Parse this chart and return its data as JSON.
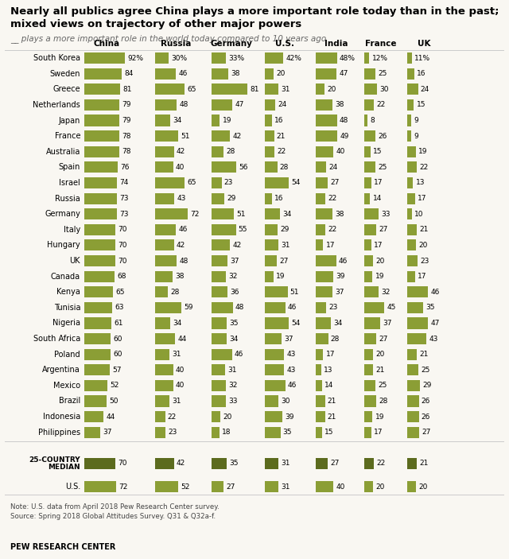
{
  "title": "Nearly all publics agree China plays a more important role today than in the past;\nmixed views on trajectory of other major powers",
  "subtitle": "__ plays a more important role in the world today compared to 10 years ago",
  "columns": [
    "China",
    "Russia",
    "Germany",
    "U.S.",
    "India",
    "France",
    "UK"
  ],
  "countries": [
    "South Korea",
    "Sweden",
    "Greece",
    "Netherlands",
    "Japan",
    "France",
    "Australia",
    "Spain",
    "Israel",
    "Russia",
    "Germany",
    "Italy",
    "Hungary",
    "UK",
    "Canada",
    "Kenya",
    "Tunisia",
    "Nigeria",
    "South Africa",
    "Poland",
    "Argentina",
    "Mexico",
    "Brazil",
    "Indonesia",
    "Philippines"
  ],
  "data": [
    [
      92,
      30,
      33,
      42,
      48,
      12,
      11
    ],
    [
      84,
      46,
      38,
      20,
      47,
      25,
      16
    ],
    [
      81,
      65,
      81,
      31,
      20,
      30,
      24
    ],
    [
      79,
      48,
      47,
      24,
      38,
      22,
      15
    ],
    [
      79,
      34,
      19,
      16,
      48,
      8,
      9
    ],
    [
      78,
      51,
      42,
      21,
      49,
      26,
      9
    ],
    [
      78,
      42,
      28,
      22,
      40,
      15,
      19
    ],
    [
      76,
      40,
      56,
      28,
      24,
      25,
      22
    ],
    [
      74,
      65,
      23,
      54,
      27,
      17,
      13
    ],
    [
      73,
      43,
      29,
      16,
      22,
      14,
      17
    ],
    [
      73,
      72,
      51,
      34,
      38,
      33,
      10
    ],
    [
      70,
      46,
      55,
      29,
      22,
      27,
      21
    ],
    [
      70,
      42,
      42,
      31,
      17,
      17,
      20
    ],
    [
      70,
      48,
      37,
      27,
      46,
      20,
      23
    ],
    [
      68,
      38,
      32,
      19,
      39,
      19,
      17
    ],
    [
      65,
      28,
      36,
      51,
      37,
      32,
      46
    ],
    [
      63,
      59,
      48,
      46,
      23,
      45,
      35
    ],
    [
      61,
      34,
      35,
      54,
      34,
      37,
      47
    ],
    [
      60,
      44,
      34,
      37,
      28,
      27,
      43
    ],
    [
      60,
      31,
      46,
      43,
      17,
      20,
      21
    ],
    [
      57,
      40,
      31,
      43,
      13,
      21,
      25
    ],
    [
      52,
      40,
      32,
      46,
      14,
      25,
      29
    ],
    [
      50,
      31,
      33,
      30,
      21,
      28,
      26
    ],
    [
      44,
      22,
      20,
      39,
      21,
      19,
      26
    ],
    [
      37,
      23,
      18,
      35,
      15,
      17,
      27
    ]
  ],
  "median_row": [
    70,
    42,
    35,
    31,
    27,
    22,
    21
  ],
  "us_row": [
    72,
    52,
    27,
    31,
    40,
    20,
    20
  ],
  "bar_color_light": "#8b9e35",
  "bar_color_dark": "#5c6b1e",
  "note": "Note: U.S. data from April 2018 Pew Research Center survey.\nSource: Spring 2018 Global Attitudes Survey. Q31 & Q32a-f.",
  "footer": "PEW RESEARCH CENTER",
  "bg_color": "#f9f7f2"
}
